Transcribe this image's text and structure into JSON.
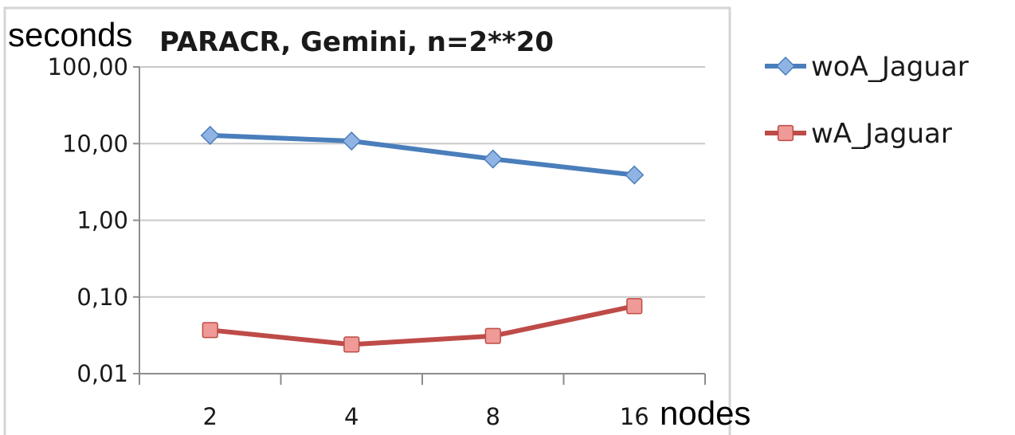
{
  "chart_data": {
    "type": "line",
    "title": "PARACR, Gemini, n=2**20",
    "xlabel": "nodes",
    "ylabel": "seconds",
    "yscale": "log",
    "ylim": [
      0.01,
      100
    ],
    "y_ticks": [
      "0,01",
      "0,10",
      "1,00",
      "10,00",
      "100,00"
    ],
    "categories": [
      "2",
      "4",
      "8",
      "16"
    ],
    "grid": true,
    "legend_position": "right",
    "series": [
      {
        "name": "woA_Jaguar",
        "values": [
          12.8,
          10.8,
          6.3,
          3.9
        ],
        "color": "#4a7ebb",
        "marker": "diamond",
        "marker_color": "#8fb4e3"
      },
      {
        "name": "wA_Jaguar",
        "values": [
          0.037,
          0.024,
          0.031,
          0.076
        ],
        "color": "#be4b48",
        "marker": "square",
        "marker_color": "#ef9a96"
      }
    ]
  }
}
